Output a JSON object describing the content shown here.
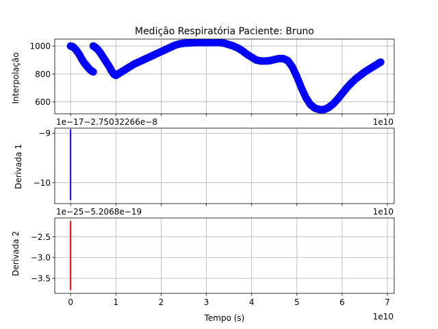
{
  "chart_data": [
    {
      "type": "scatter",
      "title": "Medição Respiratória Paciente: Bruno",
      "ylabel": "Interpolação",
      "xlabel": "",
      "xlim": [
        -0.35,
        7.15
      ],
      "ylim": [
        515,
        1050
      ],
      "xticks": [
        0,
        1,
        2,
        3,
        4,
        5,
        6,
        7
      ],
      "yticks": [
        600,
        800,
        1000
      ],
      "ytick_labels": [
        "600",
        "800",
        "1000"
      ],
      "x_offset_text": "1e10",
      "grid": true,
      "color": "#0000ff",
      "series": [
        {
          "x": [
            0.0,
            0.05,
            0.1,
            0.15,
            0.2,
            0.25,
            0.3,
            0.35,
            0.4,
            0.45,
            0.5
          ],
          "y": [
            1000,
            995,
            980,
            960,
            935,
            905,
            880,
            860,
            840,
            825,
            815
          ]
        },
        {
          "x": [
            0.5,
            0.55,
            0.6,
            0.65,
            0.7,
            0.75,
            0.8,
            0.85,
            0.9,
            0.95,
            1.0,
            1.05,
            1.1,
            1.15,
            1.2,
            1.3,
            1.4,
            1.5,
            1.6,
            1.7,
            1.8,
            1.9,
            2.0,
            2.1,
            2.2,
            2.3,
            2.4,
            2.5,
            2.6,
            2.7,
            2.8,
            2.9,
            3.0,
            3.1,
            3.2,
            3.3,
            3.4,
            3.5,
            3.6,
            3.7,
            3.8,
            3.9,
            4.0,
            4.1,
            4.2,
            4.3,
            4.4,
            4.5,
            4.6,
            4.7,
            4.8,
            4.9,
            5.0,
            5.1,
            5.2,
            5.3,
            5.4,
            5.5,
            5.6,
            5.7,
            5.8,
            5.9,
            6.0,
            6.1,
            6.2,
            6.3,
            6.4,
            6.5,
            6.6,
            6.7,
            6.8,
            6.85
          ],
          "y": [
            1000,
            990,
            975,
            955,
            930,
            905,
            880,
            855,
            825,
            800,
            790,
            800,
            810,
            820,
            830,
            850,
            870,
            885,
            900,
            915,
            930,
            945,
            960,
            975,
            990,
            1005,
            1015,
            1020,
            1022,
            1024,
            1025,
            1025,
            1025,
            1025,
            1025,
            1025,
            1020,
            1010,
            1000,
            985,
            965,
            940,
            920,
            900,
            893,
            893,
            895,
            903,
            910,
            910,
            895,
            850,
            780,
            700,
            630,
            580,
            555,
            545,
            545,
            560,
            585,
            620,
            660,
            700,
            735,
            765,
            790,
            815,
            835,
            855,
            875,
            885
          ]
        }
      ]
    },
    {
      "type": "line",
      "ylabel": "Derivada 1",
      "xlim": [
        -0.35,
        7.15
      ],
      "ylim": [
        -10.42,
        -8.9
      ],
      "yticks": [
        -10,
        -9
      ],
      "ytick_labels": [
        "−10",
        "−9"
      ],
      "y_offset_text": "1e−17−2.75032266e−8",
      "x_offset_text": "1e10",
      "grid": true,
      "color": "#0000ff",
      "segment": {
        "x": [
          0.0,
          0.0
        ],
        "y": [
          -8.92,
          -10.35
        ]
      }
    },
    {
      "type": "line",
      "ylabel": "Derivada 2",
      "xlabel": "Tempo (s)",
      "xlim": [
        -0.35,
        7.15
      ],
      "ylim": [
        -3.86,
        -2.05
      ],
      "xticks": [
        0,
        1,
        2,
        3,
        4,
        5,
        6,
        7
      ],
      "xtick_labels": [
        "0",
        "1",
        "2",
        "3",
        "4",
        "5",
        "6",
        "7"
      ],
      "yticks": [
        -3.5,
        -3.0,
        -2.5
      ],
      "ytick_labels": [
        "−3.5",
        "−3.0",
        "−2.5"
      ],
      "y_offset_text": "1e−25−5.2068e−19",
      "x_offset_text": "1e10",
      "grid": true,
      "color": "#ff0000",
      "segment": {
        "x": [
          0.0,
          0.0
        ],
        "y": [
          -2.12,
          -3.78
        ]
      }
    }
  ]
}
